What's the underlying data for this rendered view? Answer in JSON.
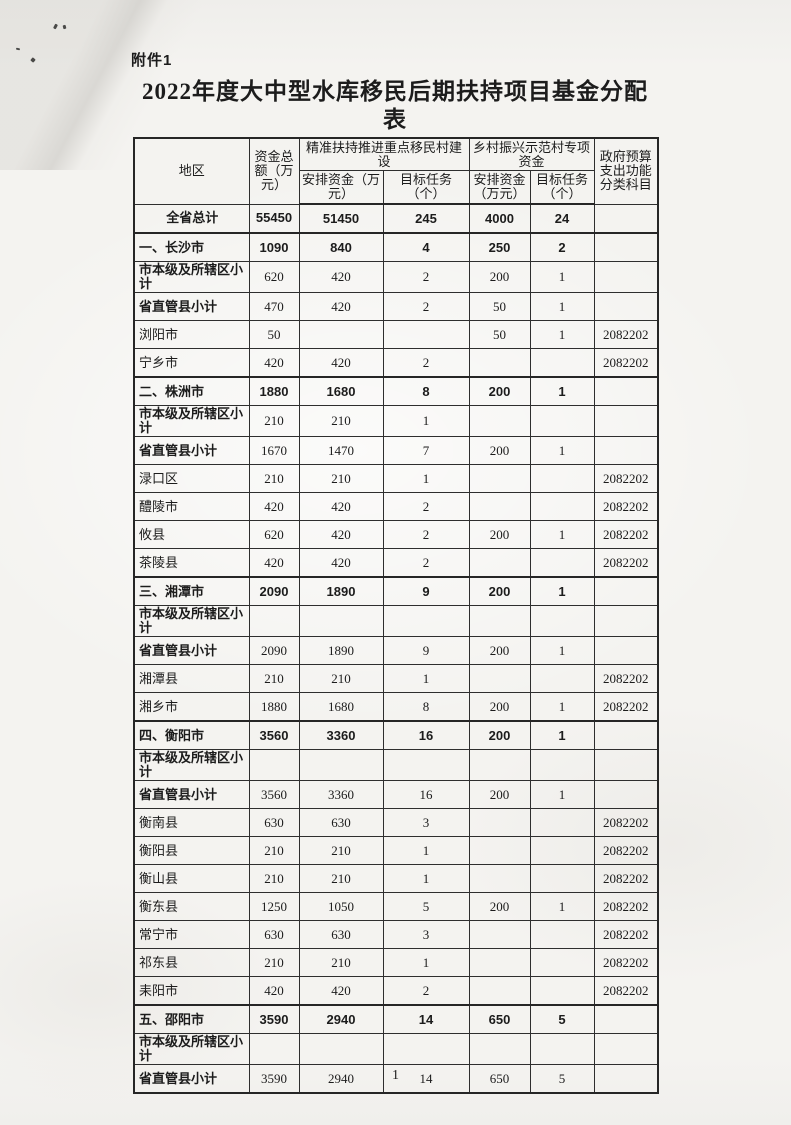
{
  "page": {
    "attachment_label": "附件1",
    "title_line1": "2022年度大中型水库移民后期扶持项目基金分配",
    "title_line2": "表",
    "page_number": "1"
  },
  "colors": {
    "ink": "#1c1c1c",
    "paper": "#f4f3f0",
    "table_border": "#262626"
  },
  "table": {
    "headers": {
      "region": "地区",
      "total_fund": "资金总额（万元）",
      "group_precise_support": "精准扶持推进重点移民村建设",
      "group_rural_revitalization": "乡村振兴示范村专项资金",
      "arranged_fund": "安排资金（万元）",
      "target_task": "目标任务（个）",
      "budget_subject": "政府预算支出功能分类科目"
    },
    "rows": [
      {
        "style": "total",
        "region": "全省总计",
        "total": "55450",
        "fund1": "51450",
        "task1": "245",
        "fund2": "4000",
        "task2": "24",
        "subject": ""
      },
      {
        "style": "section",
        "region": "一、长沙市",
        "total": "1090",
        "fund1": "840",
        "task1": "4",
        "fund2": "250",
        "task2": "2",
        "subject": ""
      },
      {
        "style": "subtotal",
        "region": "市本级及所辖区小计",
        "total": "620",
        "fund1": "420",
        "task1": "2",
        "fund2": "200",
        "task2": "1",
        "subject": ""
      },
      {
        "style": "subtotal",
        "region": "省直管县小计",
        "total": "470",
        "fund1": "420",
        "task1": "2",
        "fund2": "50",
        "task2": "1",
        "subject": ""
      },
      {
        "style": "detail",
        "region": "浏阳市",
        "total": "50",
        "fund1": "",
        "task1": "",
        "fund2": "50",
        "task2": "1",
        "subject": "2082202"
      },
      {
        "style": "detail",
        "region": "宁乡市",
        "total": "420",
        "fund1": "420",
        "task1": "2",
        "fund2": "",
        "task2": "",
        "subject": "2082202"
      },
      {
        "style": "section",
        "region": "二、株洲市",
        "total": "1880",
        "fund1": "1680",
        "task1": "8",
        "fund2": "200",
        "task2": "1",
        "subject": ""
      },
      {
        "style": "subtotal",
        "region": "市本级及所辖区小计",
        "total": "210",
        "fund1": "210",
        "task1": "1",
        "fund2": "",
        "task2": "",
        "subject": ""
      },
      {
        "style": "subtotal",
        "region": "省直管县小计",
        "total": "1670",
        "fund1": "1470",
        "task1": "7",
        "fund2": "200",
        "task2": "1",
        "subject": ""
      },
      {
        "style": "detail",
        "region": "渌口区",
        "total": "210",
        "fund1": "210",
        "task1": "1",
        "fund2": "",
        "task2": "",
        "subject": "2082202"
      },
      {
        "style": "detail",
        "region": "醴陵市",
        "total": "420",
        "fund1": "420",
        "task1": "2",
        "fund2": "",
        "task2": "",
        "subject": "2082202"
      },
      {
        "style": "detail",
        "region": "攸县",
        "total": "620",
        "fund1": "420",
        "task1": "2",
        "fund2": "200",
        "task2": "1",
        "subject": "2082202"
      },
      {
        "style": "detail",
        "region": "茶陵县",
        "total": "420",
        "fund1": "420",
        "task1": "2",
        "fund2": "",
        "task2": "",
        "subject": "2082202"
      },
      {
        "style": "section",
        "region": "三、湘潭市",
        "total": "2090",
        "fund1": "1890",
        "task1": "9",
        "fund2": "200",
        "task2": "1",
        "subject": ""
      },
      {
        "style": "subtotal",
        "region": "市本级及所辖区小计",
        "total": "",
        "fund1": "",
        "task1": "",
        "fund2": "",
        "task2": "",
        "subject": ""
      },
      {
        "style": "subtotal",
        "region": "省直管县小计",
        "total": "2090",
        "fund1": "1890",
        "task1": "9",
        "fund2": "200",
        "task2": "1",
        "subject": ""
      },
      {
        "style": "detail",
        "region": "湘潭县",
        "total": "210",
        "fund1": "210",
        "task1": "1",
        "fund2": "",
        "task2": "",
        "subject": "2082202"
      },
      {
        "style": "detail",
        "region": "湘乡市",
        "total": "1880",
        "fund1": "1680",
        "task1": "8",
        "fund2": "200",
        "task2": "1",
        "subject": "2082202"
      },
      {
        "style": "section",
        "region": "四、衡阳市",
        "total": "3560",
        "fund1": "3360",
        "task1": "16",
        "fund2": "200",
        "task2": "1",
        "subject": ""
      },
      {
        "style": "subtotal",
        "region": "市本级及所辖区小计",
        "total": "",
        "fund1": "",
        "task1": "",
        "fund2": "",
        "task2": "",
        "subject": ""
      },
      {
        "style": "subtotal",
        "region": "省直管县小计",
        "total": "3560",
        "fund1": "3360",
        "task1": "16",
        "fund2": "200",
        "task2": "1",
        "subject": ""
      },
      {
        "style": "detail",
        "region": "衡南县",
        "total": "630",
        "fund1": "630",
        "task1": "3",
        "fund2": "",
        "task2": "",
        "subject": "2082202"
      },
      {
        "style": "detail",
        "region": "衡阳县",
        "total": "210",
        "fund1": "210",
        "task1": "1",
        "fund2": "",
        "task2": "",
        "subject": "2082202"
      },
      {
        "style": "detail",
        "region": "衡山县",
        "total": "210",
        "fund1": "210",
        "task1": "1",
        "fund2": "",
        "task2": "",
        "subject": "2082202"
      },
      {
        "style": "detail",
        "region": "衡东县",
        "total": "1250",
        "fund1": "1050",
        "task1": "5",
        "fund2": "200",
        "task2": "1",
        "subject": "2082202"
      },
      {
        "style": "detail",
        "region": "常宁市",
        "total": "630",
        "fund1": "630",
        "task1": "3",
        "fund2": "",
        "task2": "",
        "subject": "2082202"
      },
      {
        "style": "detail",
        "region": "祁东县",
        "total": "210",
        "fund1": "210",
        "task1": "1",
        "fund2": "",
        "task2": "",
        "subject": "2082202"
      },
      {
        "style": "detail",
        "region": "耒阳市",
        "total": "420",
        "fund1": "420",
        "task1": "2",
        "fund2": "",
        "task2": "",
        "subject": "2082202"
      },
      {
        "style": "section",
        "region": "五、邵阳市",
        "total": "3590",
        "fund1": "2940",
        "task1": "14",
        "fund2": "650",
        "task2": "5",
        "subject": ""
      },
      {
        "style": "subtotal",
        "region": "市本级及所辖区小计",
        "total": "",
        "fund1": "",
        "task1": "",
        "fund2": "",
        "task2": "",
        "subject": ""
      },
      {
        "style": "subtotal",
        "region": "省直管县小计",
        "total": "3590",
        "fund1": "2940",
        "task1": "14",
        "fund2": "650",
        "task2": "5",
        "subject": ""
      }
    ]
  }
}
